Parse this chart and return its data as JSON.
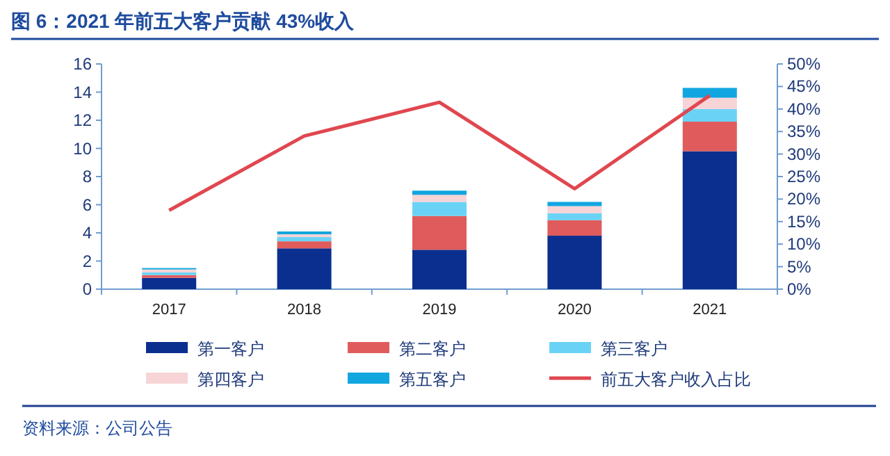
{
  "chart_data": {
    "type": "bar",
    "stacked": true,
    "title": "图 6：2021 年前五大客户贡献 43%收入",
    "categories": [
      "2017",
      "2018",
      "2019",
      "2020",
      "2021"
    ],
    "series": [
      {
        "name": "第一客户",
        "color": "#0b2f8f",
        "values": [
          0.8,
          2.9,
          2.8,
          3.8,
          9.8
        ]
      },
      {
        "name": "第二客户",
        "color": "#e05c5c",
        "values": [
          0.2,
          0.5,
          2.4,
          1.1,
          2.1
        ]
      },
      {
        "name": "第三客户",
        "color": "#6ad3f5",
        "values": [
          0.2,
          0.3,
          1.0,
          0.5,
          0.9
        ]
      },
      {
        "name": "第四客户",
        "color": "#f7d4d6",
        "values": [
          0.2,
          0.2,
          0.5,
          0.5,
          0.8
        ]
      },
      {
        "name": "第五客户",
        "color": "#12a6e0",
        "values": [
          0.1,
          0.2,
          0.3,
          0.3,
          0.7
        ]
      },
      {
        "name": "前五大客户收入占比",
        "type": "line",
        "axis": "y2",
        "color": "#e0474f",
        "values": [
          17.5,
          34,
          41.5,
          22.3,
          43
        ]
      }
    ],
    "ylim": [
      0,
      16
    ],
    "yticks": [
      0,
      2,
      4,
      6,
      8,
      10,
      12,
      14,
      16
    ],
    "y2lim": [
      0,
      50
    ],
    "y2ticks": [
      {
        "value": 0,
        "label": "0%"
      },
      {
        "value": 5,
        "label": "5%"
      },
      {
        "value": 10,
        "label": "10%"
      },
      {
        "value": 15,
        "label": "15%"
      },
      {
        "value": 20,
        "label": "20%"
      },
      {
        "value": 25,
        "label": "25%"
      },
      {
        "value": 30,
        "label": "30%"
      },
      {
        "value": 35,
        "label": "35%"
      },
      {
        "value": 40,
        "label": "40%"
      },
      {
        "value": 45,
        "label": "45%"
      },
      {
        "value": 50,
        "label": "50%"
      }
    ],
    "legend": "bottom",
    "grid": false,
    "annotations": [
      "资料来源：公司公告"
    ]
  }
}
